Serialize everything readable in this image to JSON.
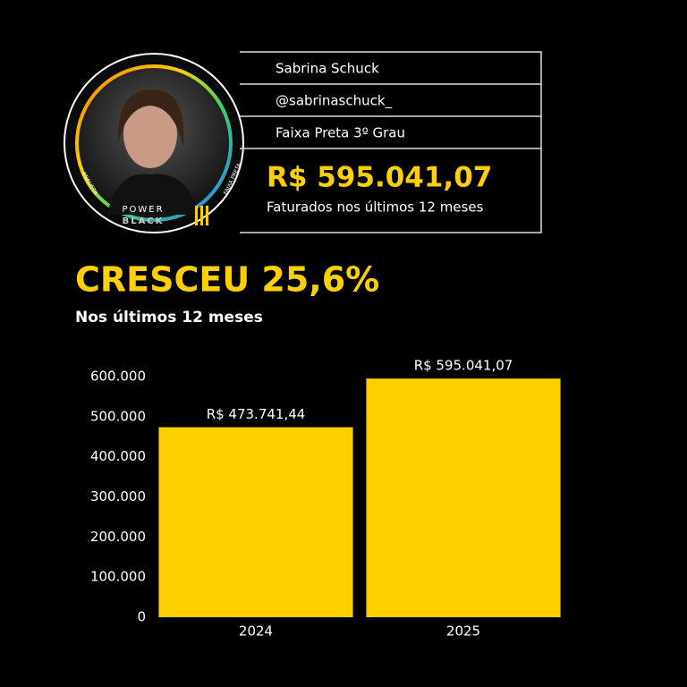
{
  "profile": {
    "name": "Sabrina Schuck",
    "handle": "@sabrinaschuck_",
    "rank": "Faixa Preta 3º Grau",
    "amount": "R$ 595.041,07",
    "amount_caption": "Faturados nos últimos 12 meses",
    "badge": {
      "left": "ANALISTA",
      "right": "FAIXA PRETA",
      "brand_top": "POWER",
      "brand_bottom": "BLACK"
    }
  },
  "headline": "CRESCEU 25,6%",
  "subheadline": "Nos últimos 12 meses",
  "chart_data": {
    "type": "bar",
    "categories": [
      "2024",
      "2025"
    ],
    "values": [
      473741.44,
      595041.07
    ],
    "value_labels": [
      "R$  473.741,44",
      "R$  595.041,07"
    ],
    "color": "#ffd000",
    "ylim": [
      0,
      600000
    ],
    "yticks": [
      0,
      {
        "value": 100000,
        "label": "100.000"
      },
      {
        "value": 200000,
        "label": "200.000"
      },
      {
        "value": 300000,
        "label": "300.000"
      },
      {
        "value": 400000,
        "label": "400.000"
      },
      {
        "value": 500000,
        "label": "500.000"
      },
      {
        "value": 600000,
        "label": "600.000"
      }
    ]
  }
}
